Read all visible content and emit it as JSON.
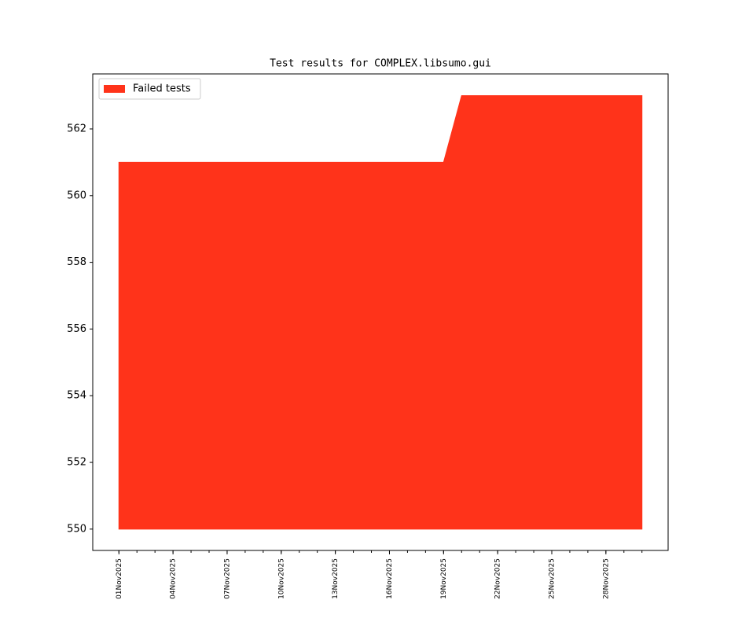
{
  "chart_data": {
    "type": "area",
    "title": "Test results for COMPLEX.libsumo.gui",
    "x": [
      "2025-11-01",
      "2025-11-02",
      "2025-11-03",
      "2025-11-04",
      "2025-11-05",
      "2025-11-06",
      "2025-11-07",
      "2025-11-08",
      "2025-11-09",
      "2025-11-10",
      "2025-11-11",
      "2025-11-12",
      "2025-11-13",
      "2025-11-14",
      "2025-11-15",
      "2025-11-16",
      "2025-11-17",
      "2025-11-18",
      "2025-11-19",
      "2025-11-20",
      "2025-11-21",
      "2025-11-22",
      "2025-11-23",
      "2025-11-24",
      "2025-11-25",
      "2025-11-26",
      "2025-11-27",
      "2025-11-28",
      "2025-11-29",
      "2025-11-30"
    ],
    "baseline": 550,
    "series": [
      {
        "name": "Failed tests",
        "color": "#ff331a",
        "values": [
          561,
          561,
          561,
          561,
          561,
          561,
          561,
          561,
          561,
          561,
          561,
          561,
          561,
          561,
          561,
          561,
          561,
          561,
          561,
          563,
          563,
          563,
          563,
          563,
          563,
          563,
          563,
          563,
          563,
          563
        ]
      }
    ],
    "xlim": [
      "2025-10-30T13:12:00Z",
      "2025-12-01T10:48:00Z"
    ],
    "xticks": [
      {
        "value": "2025-11-01",
        "label": "01Nov2025"
      },
      {
        "value": "2025-11-04",
        "label": "04Nov2025"
      },
      {
        "value": "2025-11-07",
        "label": "07Nov2025"
      },
      {
        "value": "2025-11-10",
        "label": "10Nov2025"
      },
      {
        "value": "2025-11-13",
        "label": "13Nov2025"
      },
      {
        "value": "2025-11-16",
        "label": "16Nov2025"
      },
      {
        "value": "2025-11-19",
        "label": "19Nov2025"
      },
      {
        "value": "2025-11-22",
        "label": "22Nov2025"
      },
      {
        "value": "2025-11-25",
        "label": "25Nov2025"
      },
      {
        "value": "2025-11-28",
        "label": "28Nov2025"
      }
    ],
    "ylim": [
      549.36,
      563.65
    ],
    "yticks": [
      550,
      552,
      554,
      556,
      558,
      560,
      562
    ],
    "legend": "upper left"
  }
}
